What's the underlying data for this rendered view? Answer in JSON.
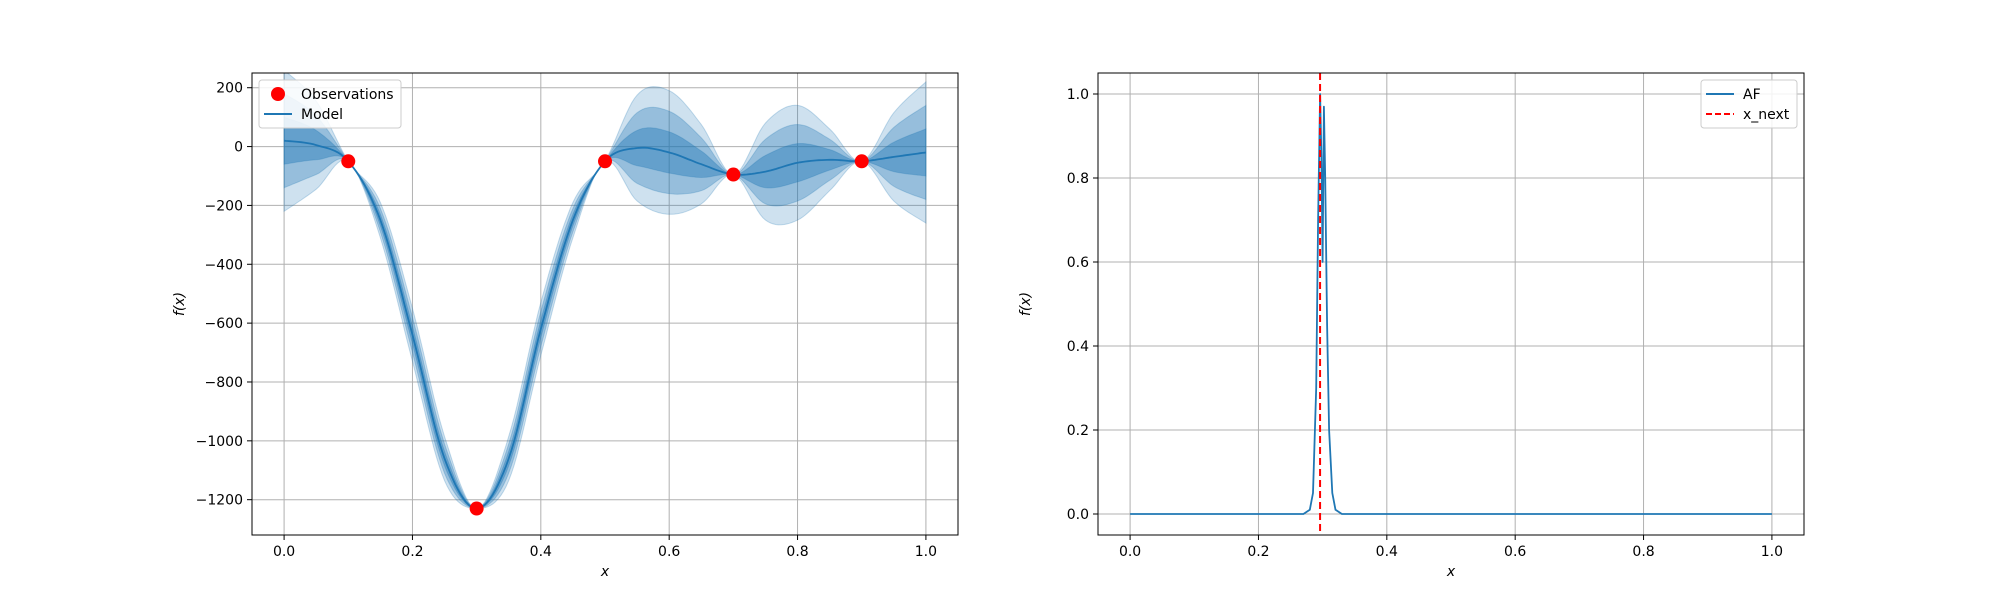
{
  "chart_data": [
    {
      "type": "line",
      "xlabel": "x",
      "ylabel": "f(x)",
      "xlim": [
        -0.05,
        1.05
      ],
      "ylim": [
        -1320,
        250
      ],
      "xticks": [
        0.0,
        0.2,
        0.4,
        0.6,
        0.8,
        1.0
      ],
      "xtick_labels": [
        "0.0",
        "0.2",
        "0.4",
        "0.6",
        "0.8",
        "1.0"
      ],
      "yticks": [
        200,
        0,
        -200,
        -400,
        -600,
        -800,
        -1000,
        -1200
      ],
      "ytick_labels": [
        "200",
        "0",
        "−200",
        "−400",
        "−600",
        "−800",
        "−1000",
        "−1200"
      ],
      "grid": true,
      "legend_position": "top-left",
      "legend": [
        "Observations",
        "Model"
      ],
      "series": [
        {
          "name": "Observations",
          "kind": "scatter",
          "x": [
            0.1,
            0.3,
            0.5,
            0.7,
            0.9
          ],
          "y": [
            -50,
            -1230,
            -50,
            -95,
            -50
          ]
        },
        {
          "name": "Model",
          "kind": "line",
          "x": [
            0.0,
            0.05,
            0.1,
            0.15,
            0.2,
            0.25,
            0.3,
            0.35,
            0.4,
            0.45,
            0.5,
            0.55,
            0.6,
            0.65,
            0.7,
            0.75,
            0.8,
            0.85,
            0.9,
            0.95,
            1.0
          ],
          "y": [
            20,
            5,
            -50,
            -250,
            -640,
            -1060,
            -1230,
            -1060,
            -620,
            -250,
            -50,
            -5,
            -20,
            -60,
            -95,
            -85,
            -55,
            -45,
            -50,
            -35,
            -20
          ],
          "band_sigma": [
            80,
            50,
            0,
            20,
            30,
            25,
            0,
            25,
            30,
            20,
            0,
            60,
            70,
            45,
            0,
            55,
            65,
            35,
            0,
            50,
            80
          ],
          "bands": [
            1,
            2,
            3
          ]
        }
      ],
      "colors": {
        "model": "#1f77b4",
        "observations": "#ff0000",
        "grid": "#b0b0b0"
      }
    },
    {
      "type": "line",
      "xlabel": "x",
      "ylabel": "f(x)",
      "xlim": [
        -0.05,
        1.05
      ],
      "ylim": [
        -0.05,
        1.05
      ],
      "xticks": [
        0.0,
        0.2,
        0.4,
        0.6,
        0.8,
        1.0
      ],
      "xtick_labels": [
        "0.0",
        "0.2",
        "0.4",
        "0.6",
        "0.8",
        "1.0"
      ],
      "yticks": [
        0.0,
        0.2,
        0.4,
        0.6,
        0.8,
        1.0
      ],
      "ytick_labels": [
        "0.0",
        "0.2",
        "0.4",
        "0.6",
        "0.8",
        "1.0"
      ],
      "grid": true,
      "legend_position": "top-right",
      "legend": [
        "AF",
        "x_next"
      ],
      "series": [
        {
          "name": "AF",
          "kind": "line",
          "x": [
            0.0,
            0.27,
            0.28,
            0.285,
            0.29,
            0.293,
            0.296,
            0.298,
            0.3,
            0.302,
            0.304,
            0.307,
            0.31,
            0.315,
            0.32,
            0.33,
            0.34,
            1.0
          ],
          "y": [
            0.0,
            0.0,
            0.01,
            0.05,
            0.3,
            0.7,
            1.0,
            0.85,
            0.6,
            0.97,
            0.8,
            0.45,
            0.2,
            0.05,
            0.01,
            0.0,
            0.0,
            0.0
          ]
        },
        {
          "name": "x_next",
          "kind": "vline",
          "x": 0.296
        }
      ],
      "colors": {
        "af": "#1f77b4",
        "x_next": "#ff0000",
        "grid": "#b0b0b0"
      }
    }
  ]
}
